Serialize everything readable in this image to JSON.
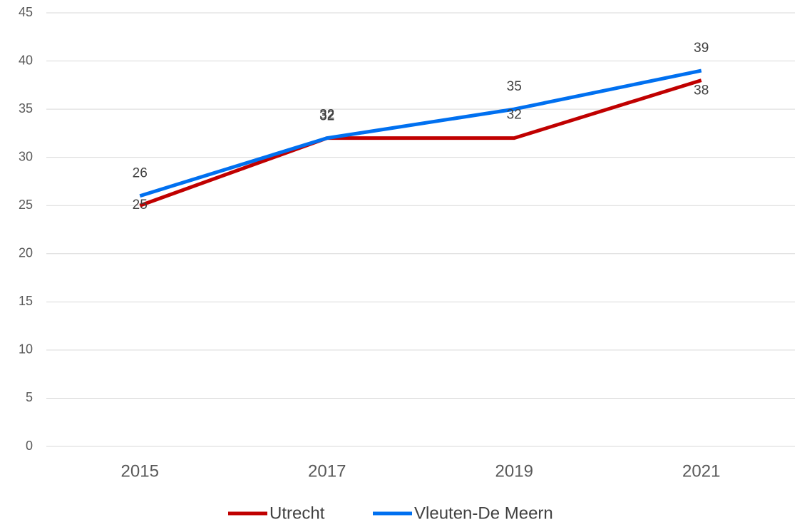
{
  "chart_data": {
    "type": "line",
    "categories": [
      "2015",
      "2017",
      "2019",
      "2021"
    ],
    "series": [
      {
        "name": "Utrecht",
        "color": "#c00000",
        "values": [
          25,
          32,
          32,
          38
        ]
      },
      {
        "name": "Vleuten-De Meern",
        "color": "#0070f0",
        "values": [
          26,
          32,
          35,
          39
        ]
      }
    ],
    "ylim": [
      0,
      45
    ],
    "yticks": [
      0,
      5,
      10,
      15,
      20,
      25,
      30,
      35,
      40,
      45
    ],
    "grid": true,
    "legend": "bottom"
  }
}
